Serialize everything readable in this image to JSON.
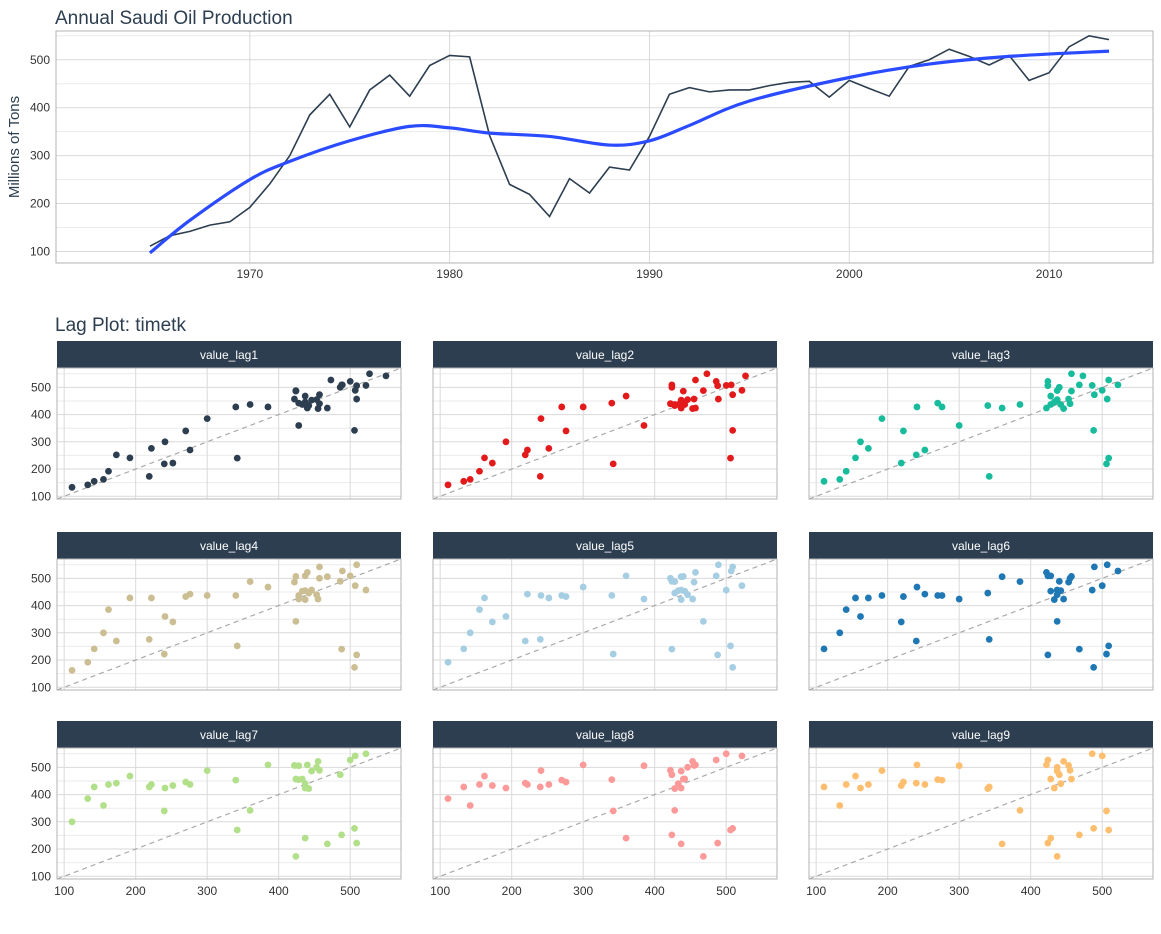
{
  "chart_data": [
    {
      "type": "line",
      "title": "Annual Saudi Oil Production",
      "xlabel": "",
      "ylabel": "Millions of Tons",
      "x": [
        1965,
        1966,
        1967,
        1968,
        1969,
        1970,
        1971,
        1972,
        1973,
        1974,
        1975,
        1976,
        1977,
        1978,
        1979,
        1980,
        1981,
        1982,
        1983,
        1984,
        1985,
        1986,
        1987,
        1988,
        1989,
        1990,
        1991,
        1992,
        1993,
        1994,
        1995,
        1996,
        1997,
        1998,
        1999,
        2000,
        2001,
        2002,
        2003,
        2004,
        2005,
        2006,
        2007,
        2008,
        2009,
        2010,
        2011,
        2012,
        2013
      ],
      "series": [
        {
          "values": [
            111,
            133,
            142,
            155,
            162,
            192,
            241,
            300,
            385,
            428,
            360,
            437,
            468,
            424,
            488,
            509,
            506,
            342,
            240,
            219,
            173,
            252,
            222,
            276,
            270,
            340,
            428,
            442,
            433,
            437,
            437,
            446,
            453,
            455,
            422,
            457,
            440,
            424,
            486,
            500,
            522,
            507,
            489,
            509,
            457,
            473,
            527,
            550,
            542
          ],
          "color": "#2c3e50"
        },
        {
          "smoother": true,
          "x": [
            1965,
            1967,
            1970,
            1972,
            1975,
            1978,
            1980,
            1982,
            1985,
            1988,
            1990,
            1992,
            1995,
            2000,
            2004,
            2008,
            2013
          ],
          "values": [
            97,
            165,
            250,
            288,
            331,
            361,
            358,
            347,
            340,
            322,
            331,
            363,
            414,
            463,
            491,
            507,
            518
          ],
          "color": "#2a4bff"
        }
      ],
      "xticks": [
        1970,
        1980,
        1990,
        2000,
        2010
      ],
      "yticks": [
        100,
        200,
        300,
        400,
        500
      ],
      "xlim": [
        1960.3,
        2015.2
      ],
      "ylim": [
        76,
        560
      ],
      "grid": true
    },
    {
      "type": "scatter",
      "title": "Lag Plot: timetk",
      "facets": [
        {
          "label": "value_lag1",
          "lag": 1,
          "color": "#2c3e50"
        },
        {
          "label": "value_lag2",
          "lag": 2,
          "color": "#e31a1c"
        },
        {
          "label": "value_lag3",
          "lag": 3,
          "color": "#18bc9c"
        },
        {
          "label": "value_lag4",
          "lag": 4,
          "color": "#ccbe93"
        },
        {
          "label": "value_lag5",
          "lag": 5,
          "color": "#a6cee3"
        },
        {
          "label": "value_lag6",
          "lag": 6,
          "color": "#1f78b4"
        },
        {
          "label": "value_lag7",
          "lag": 7,
          "color": "#b2df8a"
        },
        {
          "label": "value_lag8",
          "lag": 8,
          "color": "#fb9a99"
        },
        {
          "label": "value_lag9",
          "lag": 9,
          "color": "#fdbf6f"
        }
      ],
      "reference_line": "y = x (dashed)",
      "xticks": [
        100,
        200,
        300,
        400,
        500
      ],
      "yticks": [
        100,
        200,
        300,
        400,
        500
      ],
      "xlim": [
        90,
        571
      ],
      "ylim": [
        90,
        571
      ],
      "grid": true
    }
  ],
  "colors": {
    "strip": "#2c3e50",
    "strip_text": "#ffffff",
    "grid": "#d9d9d9",
    "text": "#2c3e50",
    "refline": "#aaaaaa"
  }
}
